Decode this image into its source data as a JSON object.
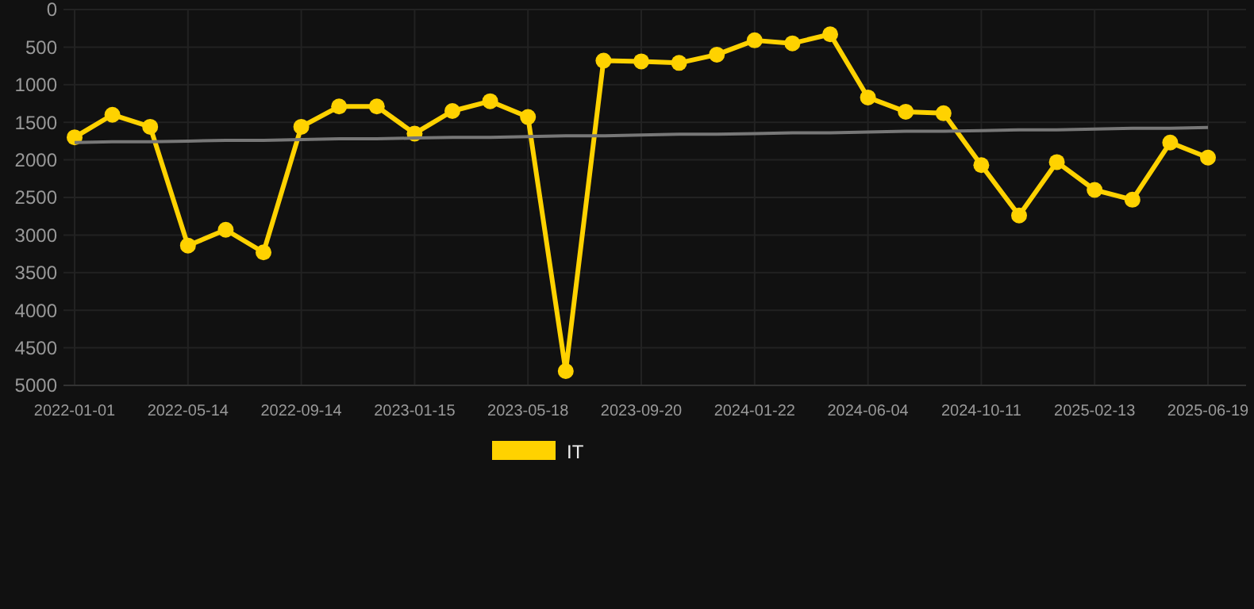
{
  "chart_data": {
    "type": "line",
    "categories": [
      "2022-01-01",
      null,
      null,
      "2022-05-14",
      null,
      null,
      "2022-09-14",
      null,
      null,
      "2023-01-15",
      null,
      null,
      "2023-05-18",
      null,
      null,
      "2023-09-20",
      null,
      null,
      "2024-01-22",
      null,
      null,
      "2024-06-04",
      null,
      null,
      "2024-10-11",
      null,
      null,
      "2025-02-13",
      null,
      null,
      "2025-06-19"
    ],
    "series": [
      {
        "name": "IT",
        "color": "#ffd200",
        "marker": "circle",
        "values": [
          1700,
          1400,
          1560,
          3140,
          2930,
          3230,
          1560,
          1290,
          1290,
          1650,
          1350,
          1220,
          1430,
          4810,
          680,
          690,
          710,
          600,
          410,
          450,
          330,
          1170,
          1360,
          1380,
          2070,
          2740,
          2030,
          2400,
          2530,
          1770,
          1970
        ]
      },
      {
        "color": "#777777",
        "marker": "none",
        "values": [
          1770,
          1760,
          1760,
          1750,
          1740,
          1740,
          1730,
          1720,
          1720,
          1710,
          1700,
          1700,
          1690,
          1680,
          1680,
          1670,
          1660,
          1660,
          1650,
          1640,
          1640,
          1630,
          1620,
          1620,
          1610,
          1600,
          1600,
          1590,
          1580,
          1580,
          1570
        ]
      }
    ],
    "ylim": [
      5000,
      0
    ],
    "yticks": [
      0,
      500,
      1000,
      1500,
      2000,
      2500,
      3000,
      3500,
      4000,
      4500,
      5000
    ],
    "grid": true,
    "legend": "bottom"
  }
}
